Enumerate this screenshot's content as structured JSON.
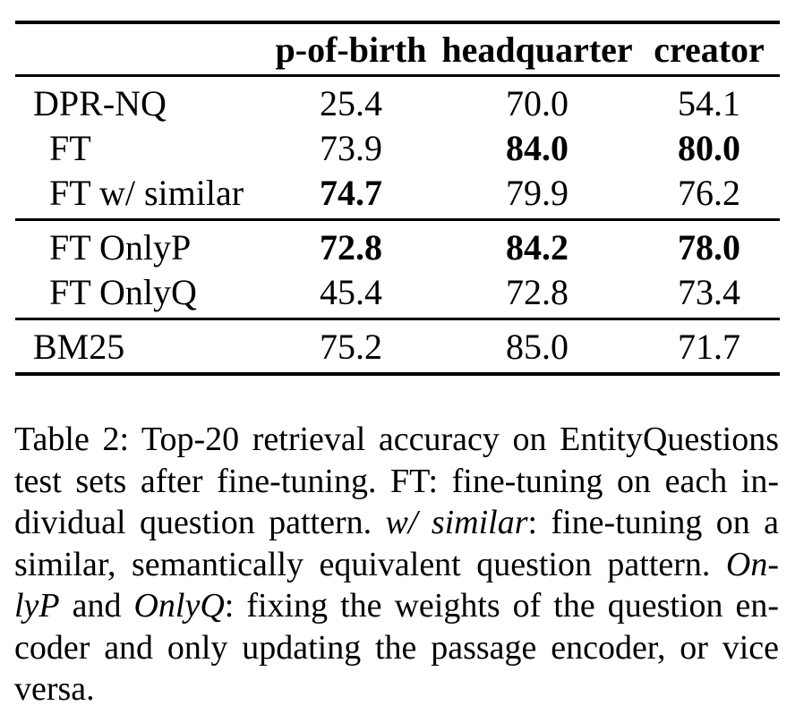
{
  "colors": {
    "background": "#ffffff",
    "text": "#000000",
    "rule": "#000000"
  },
  "table": {
    "columns": [
      "p-of-birth",
      "headquarter",
      "creator"
    ],
    "groups": [
      {
        "rows": [
          {
            "label": "DPR-NQ",
            "indent": false,
            "values": [
              {
                "v": "25.4",
                "bold": false
              },
              {
                "v": "70.0",
                "bold": false
              },
              {
                "v": "54.1",
                "bold": false
              }
            ]
          },
          {
            "label": "FT",
            "indent": true,
            "values": [
              {
                "v": "73.9",
                "bold": false
              },
              {
                "v": "84.0",
                "bold": true
              },
              {
                "v": "80.0",
                "bold": true
              }
            ]
          },
          {
            "label": "FT w/ similar",
            "indent": true,
            "values": [
              {
                "v": "74.7",
                "bold": true
              },
              {
                "v": "79.9",
                "bold": false
              },
              {
                "v": "76.2",
                "bold": false
              }
            ]
          }
        ]
      },
      {
        "rows": [
          {
            "label": "FT OnlyP",
            "indent": true,
            "values": [
              {
                "v": "72.8",
                "bold": true
              },
              {
                "v": "84.2",
                "bold": true
              },
              {
                "v": "78.0",
                "bold": true
              }
            ]
          },
          {
            "label": "FT OnlyQ",
            "indent": true,
            "values": [
              {
                "v": "45.4",
                "bold": false
              },
              {
                "v": "72.8",
                "bold": false
              },
              {
                "v": "73.4",
                "bold": false
              }
            ]
          }
        ]
      },
      {
        "rows": [
          {
            "label": "BM25",
            "indent": false,
            "values": [
              {
                "v": "75.2",
                "bold": false
              },
              {
                "v": "85.0",
                "bold": false
              },
              {
                "v": "71.7",
                "bold": false
              }
            ]
          }
        ]
      }
    ]
  },
  "caption": {
    "lines": [
      {
        "last": false,
        "segments": [
          {
            "text": "Table 2: Top-20 retrieval accuracy on EntityQuestions",
            "italic": false
          }
        ]
      },
      {
        "last": false,
        "segments": [
          {
            "text": "test sets after fine-tuning. FT: fine-tuning on each in-",
            "italic": false
          }
        ]
      },
      {
        "last": false,
        "segments": [
          {
            "text": "dividual question pattern. ",
            "italic": false
          },
          {
            "text": "w/ similar",
            "italic": true
          },
          {
            "text": ": fine-tuning on a",
            "italic": false
          }
        ]
      },
      {
        "last": false,
        "segments": [
          {
            "text": "similar, semantically equivalent question pattern. ",
            "italic": false
          },
          {
            "text": "On-",
            "italic": true
          }
        ]
      },
      {
        "last": false,
        "segments": [
          {
            "text": "lyP",
            "italic": true
          },
          {
            "text": " and ",
            "italic": false
          },
          {
            "text": "OnlyQ",
            "italic": true
          },
          {
            "text": ": fixing the weights of the question en-",
            "italic": false
          }
        ]
      },
      {
        "last": false,
        "segments": [
          {
            "text": "coder and only updating the passage encoder, or vice",
            "italic": false
          }
        ]
      },
      {
        "last": true,
        "segments": [
          {
            "text": "versa.",
            "italic": false
          }
        ]
      }
    ]
  }
}
